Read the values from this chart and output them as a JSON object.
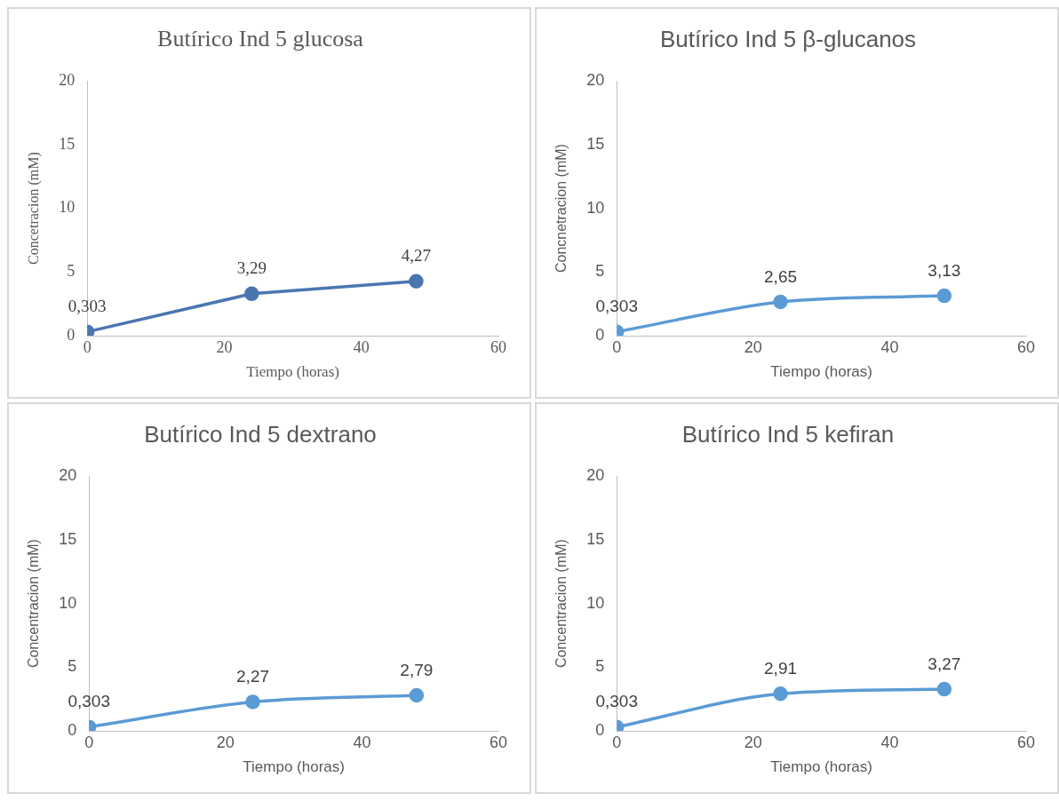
{
  "chart_data": [
    {
      "type": "line",
      "title": "Butírico Ind 5 glucosa",
      "xlabel": "Tiempo (horas)",
      "ylabel": "Concetracion (mM)",
      "x": [
        0,
        24,
        48
      ],
      "series": [
        {
          "color": "#4a76b0",
          "values": [
            0.303,
            3.29,
            4.27
          ],
          "value_labels": [
            "0,303",
            "3,29",
            "4,27"
          ]
        }
      ],
      "xlim": [
        0,
        60
      ],
      "xticks": [
        0,
        20,
        40,
        60
      ],
      "ylim": [
        0,
        20
      ],
      "yticks": [
        0,
        5,
        10,
        15,
        20
      ],
      "grid": false,
      "legend": false,
      "marker": "circle",
      "line_style": "solid"
    },
    {
      "type": "line",
      "title": "Butírico Ind 5 β-glucanos",
      "xlabel": "Tiempo (horas)",
      "ylabel": "Concnetracion (mM)",
      "x": [
        0,
        24,
        48
      ],
      "series": [
        {
          "color": "#5b9bd5",
          "values": [
            0.303,
            2.65,
            3.13
          ],
          "value_labels": [
            "0,303",
            "2,65",
            "3,13"
          ]
        }
      ],
      "xlim": [
        0,
        60
      ],
      "xticks": [
        0,
        20,
        40,
        60
      ],
      "ylim": [
        0,
        20
      ],
      "yticks": [
        0,
        5,
        10,
        15,
        20
      ],
      "grid": false,
      "legend": false,
      "marker": "circle",
      "line_style": "solid"
    },
    {
      "type": "line",
      "title": "Butírico Ind 5 dextrano",
      "xlabel": "Tiempo (horas)",
      "ylabel": "Concentracion (mM)",
      "x": [
        0,
        24,
        48
      ],
      "series": [
        {
          "color": "#5b9bd5",
          "values": [
            0.303,
            2.27,
            2.79
          ],
          "value_labels": [
            "0,303",
            "2,27",
            "2,79"
          ]
        }
      ],
      "xlim": [
        0,
        60
      ],
      "xticks": [
        0,
        20,
        40,
        60
      ],
      "ylim": [
        0,
        20
      ],
      "yticks": [
        0,
        5,
        10,
        15,
        20
      ],
      "grid": false,
      "legend": false,
      "marker": "circle",
      "line_style": "solid"
    },
    {
      "type": "line",
      "title": "Butírico Ind 5 kefiran",
      "xlabel": "Tiempo (horas)",
      "ylabel": "Concentracion (mM)",
      "x": [
        0,
        24,
        48
      ],
      "series": [
        {
          "color": "#5b9bd5",
          "values": [
            0.303,
            2.91,
            3.27
          ],
          "value_labels": [
            "0,303",
            "2,91",
            "3,27"
          ]
        }
      ],
      "xlim": [
        0,
        60
      ],
      "xticks": [
        0,
        20,
        40,
        60
      ],
      "ylim": [
        0,
        20
      ],
      "yticks": [
        0,
        5,
        10,
        15,
        20
      ],
      "grid": false,
      "legend": false,
      "marker": "circle",
      "line_style": "solid"
    }
  ]
}
